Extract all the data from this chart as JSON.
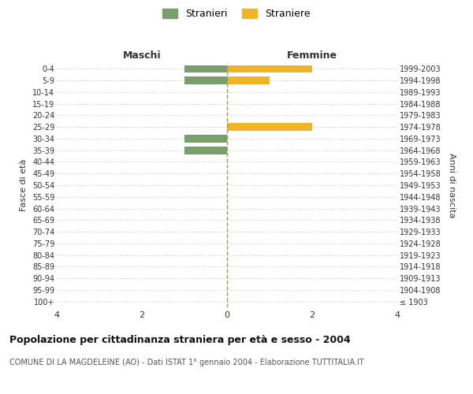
{
  "age_groups": [
    "100+",
    "95-99",
    "90-94",
    "85-89",
    "80-84",
    "75-79",
    "70-74",
    "65-69",
    "60-64",
    "55-59",
    "50-54",
    "45-49",
    "40-44",
    "35-39",
    "30-34",
    "25-29",
    "20-24",
    "15-19",
    "10-14",
    "5-9",
    "0-4"
  ],
  "birth_years": [
    "≤ 1903",
    "1904-1908",
    "1909-1913",
    "1914-1918",
    "1919-1923",
    "1924-1928",
    "1929-1933",
    "1934-1938",
    "1939-1943",
    "1944-1948",
    "1949-1953",
    "1954-1958",
    "1959-1963",
    "1964-1968",
    "1969-1973",
    "1974-1978",
    "1979-1983",
    "1984-1988",
    "1989-1993",
    "1994-1998",
    "1999-2003"
  ],
  "maschi": [
    0,
    0,
    0,
    0,
    0,
    0,
    0,
    0,
    0,
    0,
    0,
    0,
    0,
    1,
    1,
    0,
    0,
    0,
    0,
    1,
    1
  ],
  "femmine": [
    0,
    0,
    0,
    0,
    0,
    0,
    0,
    0,
    0,
    0,
    0,
    0,
    0,
    0,
    0,
    2,
    0,
    0,
    0,
    1,
    2
  ],
  "maschi_color": "#7a9e6e",
  "femmine_color": "#f0b429",
  "xlim": 4,
  "xlabel_ticks": [
    -4,
    -2,
    0,
    2,
    4
  ],
  "xlabel_labels": [
    "4",
    "2",
    "0",
    "2",
    "4"
  ],
  "title": "Popolazione per cittadinanza straniera per età e sesso - 2004",
  "subtitle": "COMUNE DI LA MAGDELEINE (AO) - Dati ISTAT 1° gennaio 2004 - Elaborazione TUTTITALIA.IT",
  "ylabel_left": "Fasce di età",
  "ylabel_right": "Anni di nascita",
  "legend_maschi": "Stranieri",
  "legend_femmine": "Straniere",
  "maschi_header": "Maschi",
  "femmine_header": "Femmine",
  "background_color": "#ffffff",
  "grid_color": "#cccccc",
  "centerline_color": "#999966"
}
